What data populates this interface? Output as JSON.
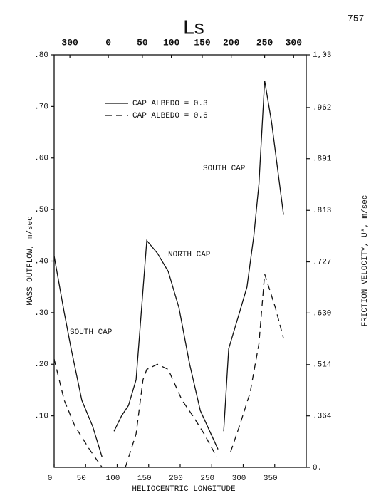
{
  "page_number": "757",
  "chart_data": {
    "type": "line",
    "top_axis_title": "Ls",
    "xlabel": "HELIOCENTRIC LONGITUDE",
    "ylabel": "MASS OUTFLOW, m/sec",
    "y2label": "FRICTION VELOCITY, U*, m/sec",
    "xlim": [
      0,
      400
    ],
    "ylim": [
      0,
      0.8
    ],
    "y2lim": [
      0,
      1.03
    ],
    "y2scale": "square",
    "xticks": [
      0,
      50,
      100,
      150,
      200,
      250,
      300,
      350
    ],
    "yticks": [
      {
        "value": 0.1,
        "label": ".10"
      },
      {
        "value": 0.2,
        "label": ".20"
      },
      {
        "value": 0.3,
        "label": ".30"
      },
      {
        "value": 0.4,
        "label": ".40"
      },
      {
        "value": 0.5,
        "label": ".50"
      },
      {
        "value": 0.6,
        "label": ".60"
      },
      {
        "value": 0.7,
        "label": ".70"
      },
      {
        "value": 0.8,
        "label": ".80"
      }
    ],
    "y2ticks": [
      {
        "value": 0,
        "label": "0."
      },
      {
        "value": 0.364,
        "label": ".364"
      },
      {
        "value": 0.514,
        "label": ".514"
      },
      {
        "value": 0.63,
        "label": ".630"
      },
      {
        "value": 0.727,
        "label": ".727"
      },
      {
        "value": 0.813,
        "label": ".813"
      },
      {
        "value": 0.891,
        "label": ".891"
      },
      {
        "value": 0.962,
        "label": ".962"
      },
      {
        "value": 1.03,
        "label": "1,03"
      }
    ],
    "x2ticks": [
      {
        "value": 25,
        "label": "300"
      },
      {
        "value": 86,
        "label": "0"
      },
      {
        "value": 140,
        "label": "50"
      },
      {
        "value": 186,
        "label": "100"
      },
      {
        "value": 235,
        "label": "150"
      },
      {
        "value": 281,
        "label": "200"
      },
      {
        "value": 334,
        "label": "250"
      },
      {
        "value": 380,
        "label": "300"
      }
    ],
    "series": [
      {
        "name": "CAP ALBEDO = 0.3",
        "color": "#111111",
        "dash": "solid",
        "x": [
          0,
          16,
          27,
          44,
          61,
          76,
          null,
          95,
          107,
          118,
          130,
          147,
          164,
          181,
          198,
          215,
          232,
          260,
          null,
          269,
          277,
          294,
          306,
          317,
          325,
          334,
          345,
          364
        ],
        "values": [
          0.41,
          0.3,
          0.23,
          0.13,
          0.08,
          0.02,
          null,
          0.07,
          0.1,
          0.12,
          0.17,
          0.44,
          0.415,
          0.38,
          0.31,
          0.2,
          0.11,
          0.035,
          null,
          0.07,
          0.23,
          0.3,
          0.35,
          0.45,
          0.55,
          0.75,
          0.67,
          0.49
        ]
      },
      {
        "name": "CAP ALBEDO = 0.6",
        "color": "#111111",
        "dash": "dashed",
        "x": [
          0,
          16,
          33,
          56,
          76,
          null,
          113,
          130,
          141,
          147,
          164,
          181,
          203,
          220,
          238,
          258,
          null,
          280,
          294,
          311,
          325,
          334,
          351,
          364
        ],
        "values": [
          0.21,
          0.13,
          0.08,
          0.035,
          0,
          null,
          0,
          0.065,
          0.17,
          0.19,
          0.2,
          0.19,
          0.13,
          0.1,
          0.065,
          0.02,
          null,
          0.03,
          0.08,
          0.145,
          0.24,
          0.375,
          0.31,
          0.25
        ]
      }
    ],
    "annotations": [
      "SOUTH CAP",
      "NORTH CAP",
      "SOUTH CAP"
    ]
  }
}
